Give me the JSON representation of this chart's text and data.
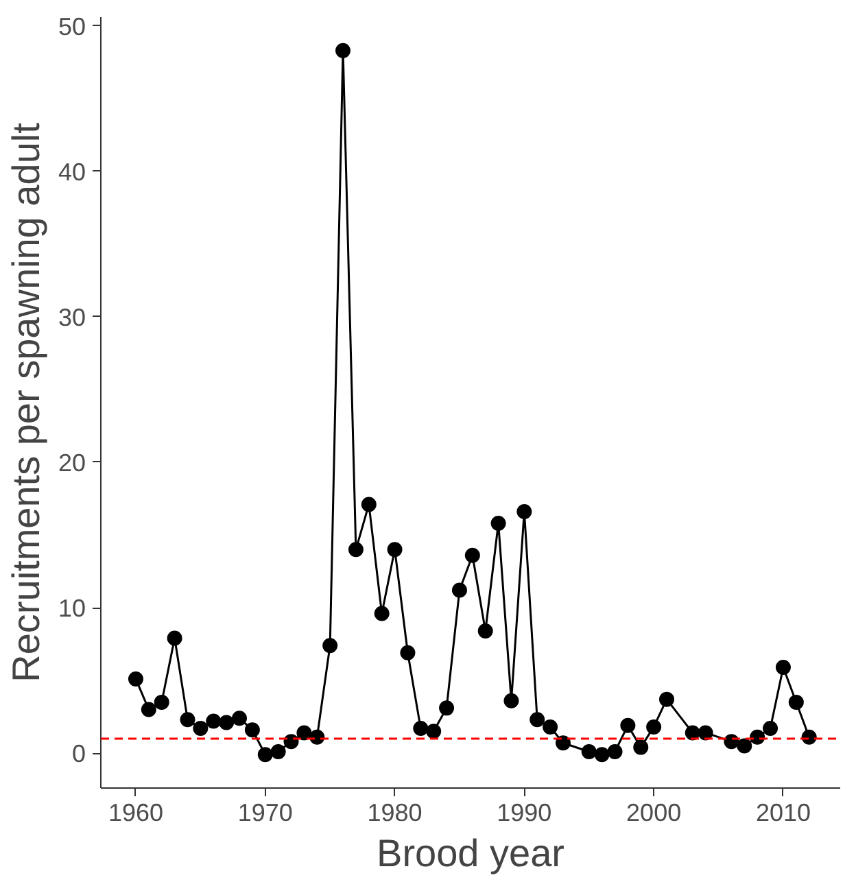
{
  "chart_data": {
    "type": "line",
    "xlabel": "Brood year",
    "ylabel": "Recruitments per spawning adult",
    "x": [
      1960,
      1961,
      1962,
      1963,
      1964,
      1965,
      1966,
      1967,
      1968,
      1969,
      1970,
      1971,
      1972,
      1973,
      1974,
      1975,
      1976,
      1977,
      1978,
      1979,
      1980,
      1981,
      1982,
      1983,
      1984,
      1985,
      1986,
      1987,
      1988,
      1989,
      1990,
      1991,
      1992,
      1993,
      1995,
      1996,
      1997,
      1998,
      1999,
      2000,
      2001,
      2003,
      2004,
      2006,
      2007,
      2008,
      2009,
      2010,
      2011,
      2012
    ],
    "series": [
      {
        "color": "#000000",
        "values": [
          5.1,
          3.0,
          3.5,
          7.9,
          2.3,
          1.7,
          2.2,
          2.1,
          2.4,
          1.6,
          -0.1,
          0.1,
          0.8,
          1.4,
          1.1,
          7.4,
          48.3,
          14.0,
          17.1,
          9.6,
          14.0,
          6.9,
          1.7,
          1.5,
          3.1,
          11.2,
          13.6,
          8.4,
          15.8,
          3.6,
          16.6,
          2.3,
          1.8,
          0.7,
          0.1,
          -0.1,
          0.1,
          1.9,
          0.4,
          1.8,
          3.7,
          1.4,
          1.4,
          0.8,
          0.5,
          1.1,
          1.7,
          5.9,
          3.5,
          1.1
        ]
      }
    ],
    "marker": "circle",
    "line_style": "solid",
    "grid": false,
    "xlim": [
      1957.3,
      2014.4
    ],
    "ylim": [
      -2.4,
      50.6
    ],
    "xticks": [
      1960,
      1970,
      1980,
      1990,
      2000,
      2010
    ],
    "yticks": [
      0,
      10,
      20,
      30,
      40,
      50
    ],
    "ref_lines": [
      {
        "axis": "y",
        "value": 1,
        "color": "#ff0000",
        "line_style": "dashed"
      }
    ]
  }
}
